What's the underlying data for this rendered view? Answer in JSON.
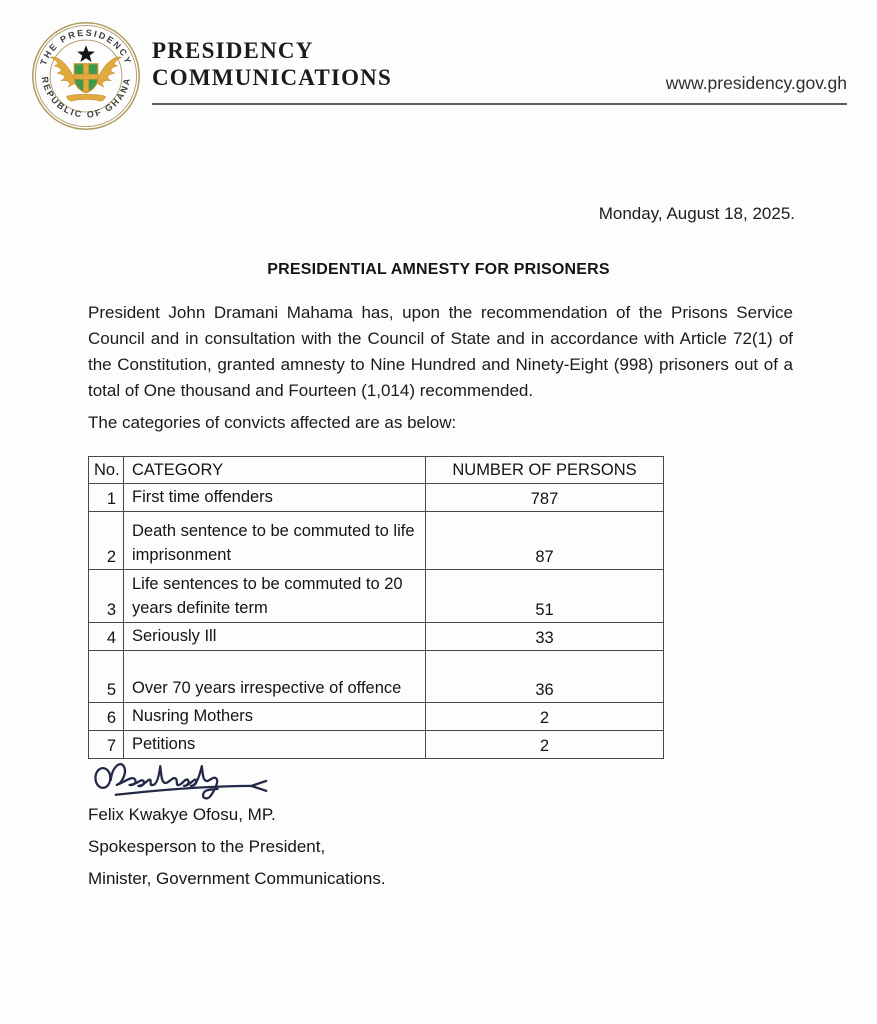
{
  "header": {
    "org_line1": "PRESIDENCY",
    "org_line2": "COMMUNICATIONS",
    "website": "www.presidency.gov.gh",
    "seal": {
      "top_text": "THE PRESIDENCY",
      "bottom_text": "REPUBLIC OF GHANA",
      "colors": {
        "ring": "#b09a62",
        "gold": "#e2a93c",
        "green": "#3c9a4d",
        "star": "#151515"
      }
    }
  },
  "date_line": "Monday, August 18, 2025.",
  "title": "PRESIDENTIAL AMNESTY FOR PRISONERS",
  "body_paragraph": "President John Dramani Mahama has, upon the recommendation of the Prisons Service Council and in consultation with the Council of State and in accordance with Article 72(1) of the Constitution, granted amnesty to Nine Hundred and Ninety-Eight (998) prisoners out of a total of One thousand and Fourteen (1,014) recommended.",
  "table_intro": "The categories of convicts affected are as below:",
  "table": {
    "headers": [
      "No.",
      "CATEGORY",
      "NUMBER OF PERSONS"
    ],
    "rows": [
      {
        "no": "1",
        "category": "First time offenders",
        "persons": "787"
      },
      {
        "no": "2",
        "category": "Death sentence to be commuted to life imprisonment",
        "persons": "87"
      },
      {
        "no": "3",
        "category": "Life sentences to be commuted to 20 years definite term",
        "persons": "51"
      },
      {
        "no": "4",
        "category": "Seriously Ill",
        "persons": "33"
      },
      {
        "no": "5",
        "category": "Over 70 years irrespective of offence",
        "persons": "36"
      },
      {
        "no": "6",
        "category": "Nusring Mothers",
        "persons": "2"
      },
      {
        "no": "7",
        "category": "Petitions",
        "persons": "2"
      }
    ]
  },
  "signature": {
    "ink_color": "#242848"
  },
  "signatory": {
    "name": "Felix Kwakye Ofosu, MP.",
    "role1": "Spokesperson to the President,",
    "role2": "Minister, Government Communications."
  }
}
